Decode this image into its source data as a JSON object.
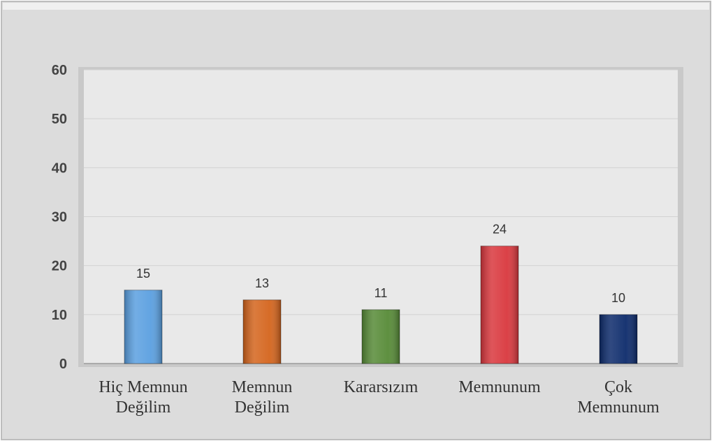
{
  "chart_data": {
    "type": "bar",
    "categories": [
      "Hiç Memnun Değilim",
      "Memnun Değilim",
      "Kararsızım",
      "Memnunum",
      "Çok Memnunum"
    ],
    "values": [
      15,
      13,
      11,
      24,
      10
    ],
    "colors": [
      "#5a9fe0",
      "#d4641c",
      "#568a36",
      "#d9373d",
      "#0c2a6b"
    ],
    "ylim": [
      0,
      60
    ],
    "yticks": [
      0,
      10,
      20,
      30,
      40,
      50,
      60
    ],
    "grid": true
  }
}
